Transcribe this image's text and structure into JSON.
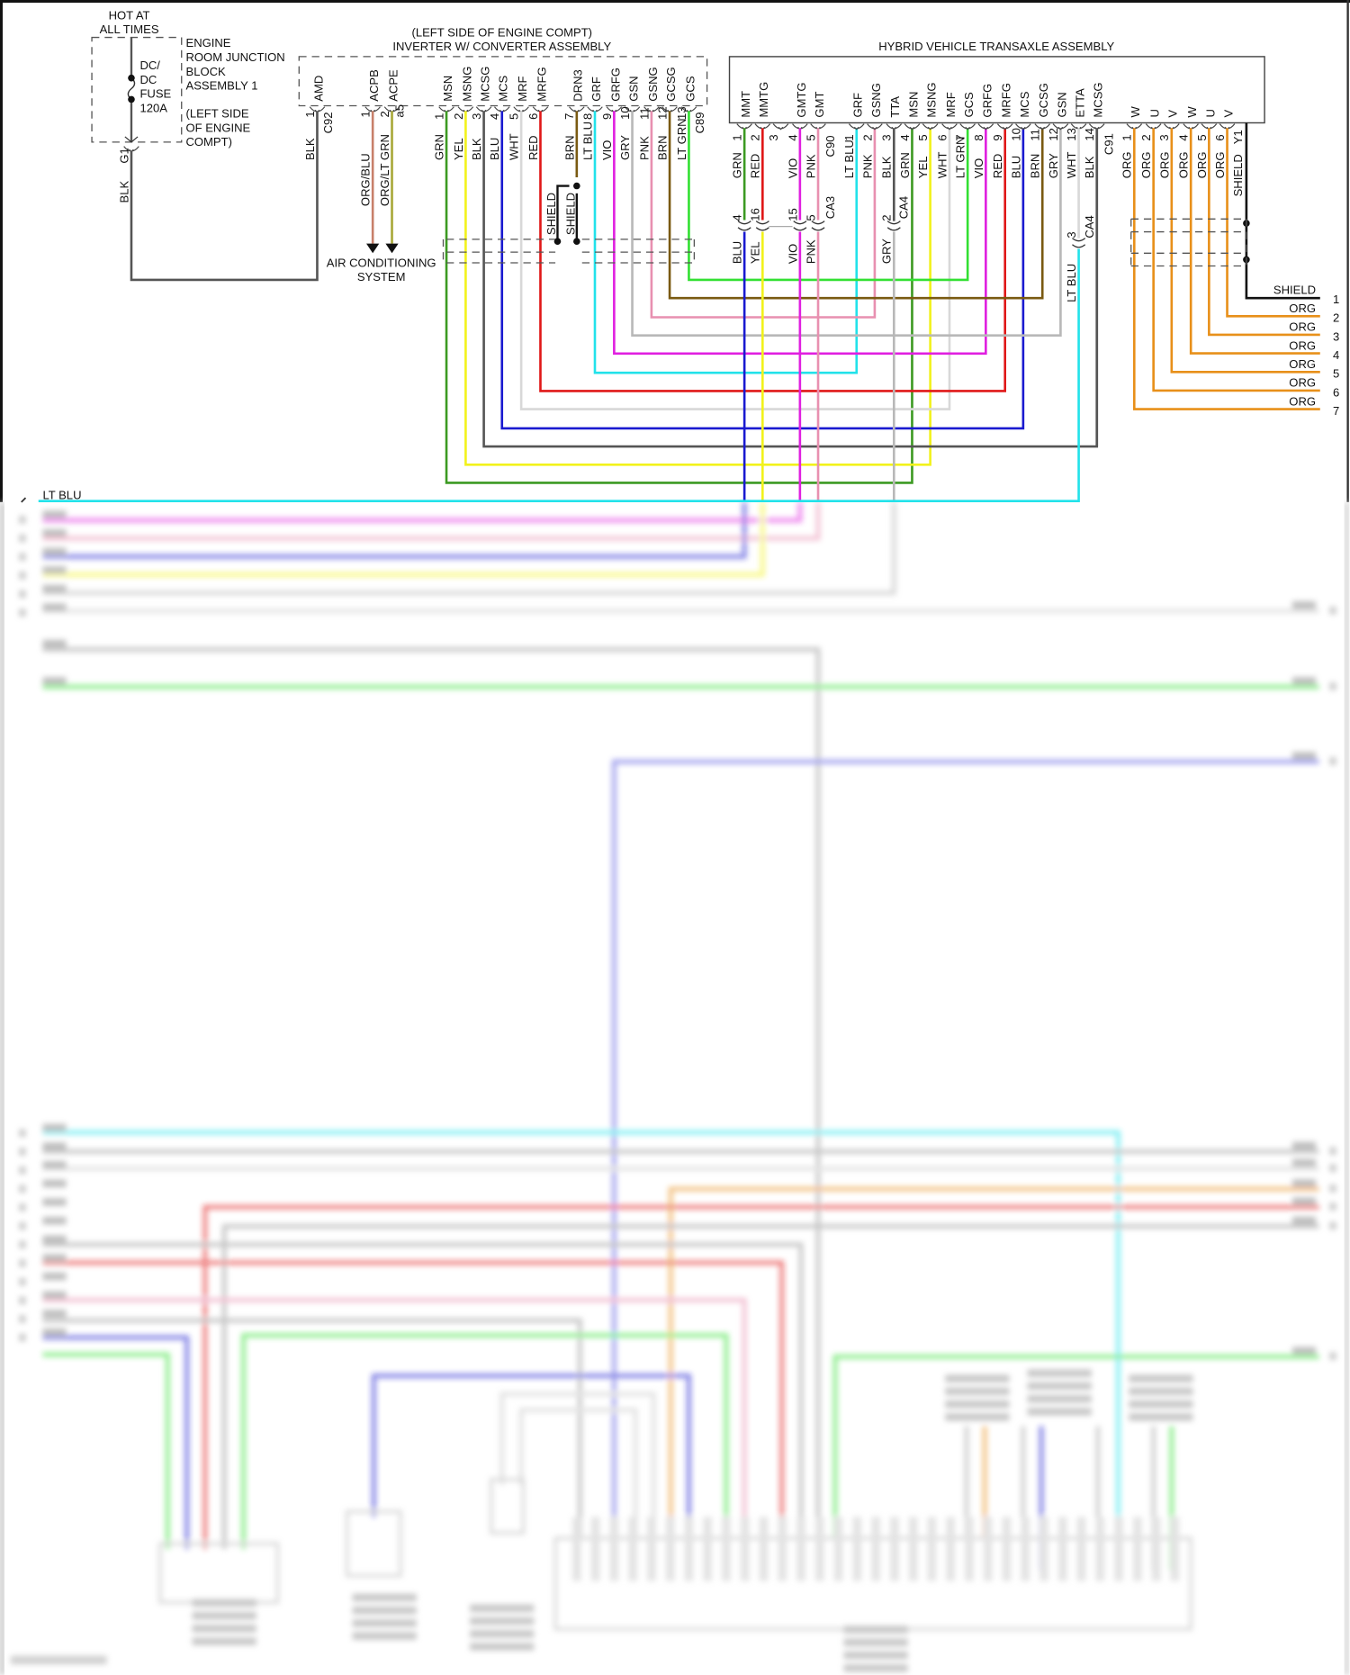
{
  "colors": {
    "GRN": "#3c9a22",
    "YEL": "#f2f21c",
    "BLK": "#555555",
    "BLU": "#1a1ad0",
    "WHT": "#d8d8d8",
    "RED": "#e01818",
    "BRN": "#7a5a12",
    "LT BLU": "#22e2ea",
    "VIO": "#e020e0",
    "GRY": "#b8b8b8",
    "PNK": "#e890b0",
    "LT GRN": "#33e033",
    "ORG": "#e8901a",
    "ORG/BLU": "#c8806a",
    "ORG/LT GRN": "#a8a838",
    "SHIELD": "#111111"
  },
  "junction_block": {
    "hot_label": [
      "HOT AT",
      "ALL TIMES"
    ],
    "name": [
      "ENGINE",
      "ROOM JUNCTION",
      "BLOCK",
      "ASSEMBLY 1"
    ],
    "location": [
      "(LEFT SIDE",
      "OF ENGINE",
      "COMPT)"
    ],
    "fuse": [
      "DC/",
      "DC",
      "FUSE",
      "120A"
    ],
    "ground": "G1",
    "wire": "BLK"
  },
  "inverter": {
    "title": [
      "(LEFT SIDE OF ENGINE COMPT)",
      "INVERTER W/ CONVERTER ASSEMBLY"
    ],
    "connectors": [
      {
        "id": "C92",
        "pins": [
          {
            "num": "1",
            "name": "AMD",
            "wire": "BLK"
          }
        ]
      },
      {
        "id": "a5",
        "pins": [
          {
            "num": "1",
            "name": "ACPB",
            "wire": "ORG/BLU"
          },
          {
            "num": "2",
            "name": "ACPE",
            "wire": "ORG/LT GRN"
          }
        ]
      },
      {
        "id": "C89",
        "pins": [
          {
            "num": "1",
            "name": "MSN",
            "wire": "GRN"
          },
          {
            "num": "2",
            "name": "MSNG",
            "wire": "YEL"
          },
          {
            "num": "3",
            "name": "MCSG",
            "wire": "BLK"
          },
          {
            "num": "4",
            "name": "MCS",
            "wire": "BLU"
          },
          {
            "num": "5",
            "name": "MRF",
            "wire": "WHT"
          },
          {
            "num": "6",
            "name": "MRFG",
            "wire": "RED"
          },
          {
            "num": "7",
            "name": "DRN3",
            "wire": "BRN"
          },
          {
            "num": "8",
            "name": "GRF",
            "wire": "LT BLU"
          },
          {
            "num": "9",
            "name": "GRFG",
            "wire": "VIO"
          },
          {
            "num": "10",
            "name": "GSN",
            "wire": "GRY"
          },
          {
            "num": "11",
            "name": "GSNG",
            "wire": "PNK"
          },
          {
            "num": "12",
            "name": "GCSG",
            "wire": "BRN"
          },
          {
            "num": "13",
            "name": "GCS",
            "wire": "LT GRN"
          }
        ]
      }
    ]
  },
  "ac_system": [
    "AIR CONDITIONING",
    "SYSTEM"
  ],
  "shield_labels": [
    "SHIELD",
    "SHIELD"
  ],
  "transaxle": {
    "title": "HYBRID VEHICLE TRANSAXLE ASSEMBLY",
    "connectors": [
      {
        "id": "C90",
        "pins": [
          {
            "num": "1",
            "name": "MMT",
            "wire": "GRN"
          },
          {
            "num": "2",
            "name": "MMTG",
            "wire": "RED"
          },
          {
            "num": "3",
            "name": "",
            "wire": ""
          },
          {
            "num": "4",
            "name": "GMTG",
            "wire": "VIO"
          },
          {
            "num": "5",
            "name": "GMT",
            "wire": "PNK"
          }
        ]
      },
      {
        "id": "C91",
        "pins": [
          {
            "num": "1",
            "name": "GRF",
            "wire": "LT BLU"
          },
          {
            "num": "2",
            "name": "GSNG",
            "wire": "PNK"
          },
          {
            "num": "3",
            "name": "TTA",
            "wire": "BLK"
          },
          {
            "num": "4",
            "name": "MSN",
            "wire": "GRN"
          },
          {
            "num": "5",
            "name": "MSNG",
            "wire": "YEL"
          },
          {
            "num": "6",
            "name": "MRF",
            "wire": "WHT"
          },
          {
            "num": "7",
            "name": "GCS",
            "wire": "LT GRN"
          },
          {
            "num": "8",
            "name": "GRFG",
            "wire": "VIO"
          },
          {
            "num": "9",
            "name": "MRFG",
            "wire": "RED"
          },
          {
            "num": "10",
            "name": "MCS",
            "wire": "BLU"
          },
          {
            "num": "11",
            "name": "GCSG",
            "wire": "BRN"
          },
          {
            "num": "12",
            "name": "GSN",
            "wire": "GRY"
          },
          {
            "num": "13",
            "name": "ETTA",
            "wire": "WHT"
          },
          {
            "num": "14",
            "name": "MCSG",
            "wire": "BLK"
          }
        ]
      },
      {
        "id": "Y1",
        "pins": [
          {
            "num": "1",
            "name": "W",
            "wire": "ORG"
          },
          {
            "num": "2",
            "name": "U",
            "wire": "ORG"
          },
          {
            "num": "3",
            "name": "V",
            "wire": "ORG"
          },
          {
            "num": "4",
            "name": "W",
            "wire": "ORG"
          },
          {
            "num": "5",
            "name": "U",
            "wire": "ORG"
          },
          {
            "num": "6",
            "name": "V",
            "wire": "ORG"
          }
        ],
        "shield": "SHIELD"
      }
    ]
  },
  "junction_connectors": {
    "CA3": [
      {
        "num": "4",
        "wire": "BLU"
      },
      {
        "num": "16",
        "wire": "YEL"
      },
      {
        "num": "15",
        "wire": "VIO"
      },
      {
        "num": "5",
        "wire": "PNK"
      }
    ],
    "CA4": [
      {
        "num": "2",
        "wire": "GRY"
      },
      {
        "num": "3",
        "wire": "LT BLU"
      }
    ]
  },
  "outputs": [
    {
      "num": "1",
      "label": "SHIELD"
    },
    {
      "num": "2",
      "label": "ORG"
    },
    {
      "num": "3",
      "label": "ORG"
    },
    {
      "num": "4",
      "label": "ORG"
    },
    {
      "num": "5",
      "label": "ORG"
    },
    {
      "num": "6",
      "label": "ORG"
    },
    {
      "num": "7",
      "label": "ORG"
    }
  ],
  "lower_section": {
    "lead_label": "LT BLU"
  }
}
